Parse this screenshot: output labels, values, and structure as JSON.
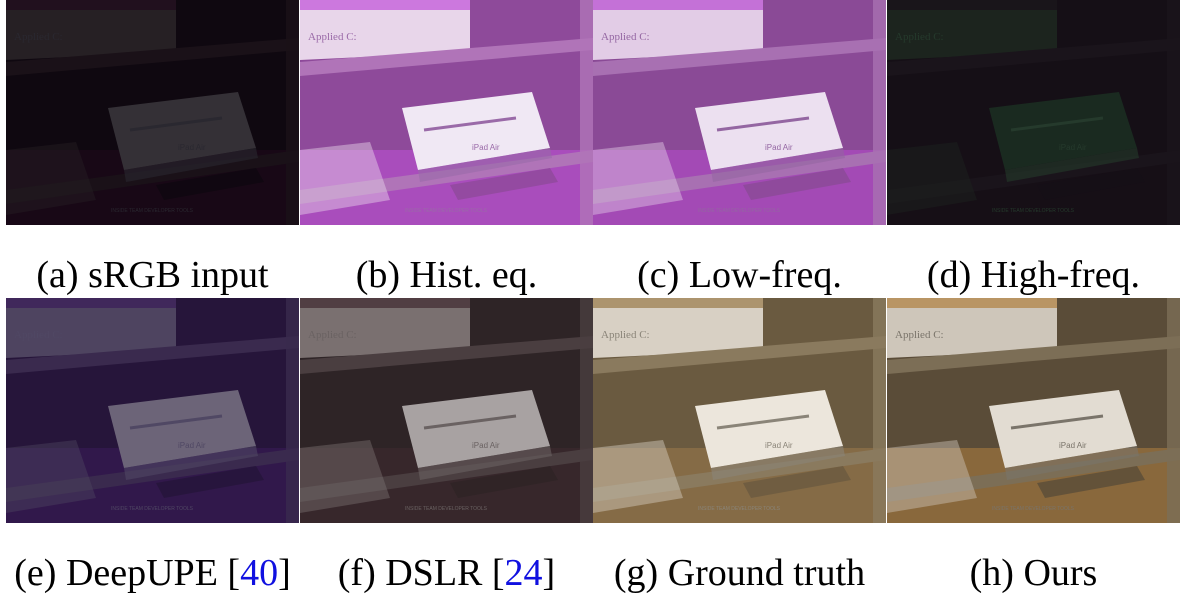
{
  "panels": [
    {
      "caption": "(a) sRGB input",
      "theme": {
        "bg": "#0f0810",
        "shelf": "#1a1118",
        "book": "#262024",
        "box": "#343036",
        "boxText": "#2a2830",
        "tint": "#200a1c"
      }
    },
    {
      "caption": "(b) Hist. eq.",
      "theme": {
        "bg": "#8e4a9a",
        "shelf": "#b074b8",
        "book": "#e8d6ea",
        "box": "#f0e8f4",
        "boxText": "#9a6aa8",
        "tint": "#c050d8"
      }
    },
    {
      "caption": "(c) Low-freq.",
      "theme": {
        "bg": "#8a4a96",
        "shelf": "#a870b2",
        "book": "#e2cce6",
        "box": "#ece0f0",
        "boxText": "#9466a2",
        "tint": "#b84ad0"
      }
    },
    {
      "caption": "(d) High-freq.",
      "theme": {
        "bg": "#150f16",
        "shelf": "#1a141b",
        "book": "#1c241e",
        "box": "#1a2a20",
        "boxText": "#253a2c",
        "tint": "#181018"
      }
    },
    {
      "caption_main": "(e) DeepUPE [",
      "ref": "40",
      "caption_end": "]",
      "theme": {
        "bg": "#26153a",
        "shelf": "#3a2a4e",
        "book": "#4e4460",
        "box": "#6c6478",
        "boxText": "#504864",
        "tint": "#3a1c5a"
      }
    },
    {
      "caption_main": "(f) DSLR [",
      "ref": "24",
      "caption_end": "]",
      "theme": {
        "bg": "#2e2426",
        "shelf": "#4a3e40",
        "book": "#7a7070",
        "box": "#a8a2a2",
        "boxText": "#6a6262",
        "tint": "#402a30"
      }
    },
    {
      "caption": "(g) Ground truth",
      "theme": {
        "bg": "#6a5a40",
        "shelf": "#8a7a5e",
        "book": "#d8d0c4",
        "box": "#ece6dc",
        "boxText": "#8a8478",
        "tint": "#9a7a4a"
      }
    },
    {
      "caption": "(h) Ours",
      "theme": {
        "bg": "#5a4c38",
        "shelf": "#7c6e56",
        "book": "#cec6ba",
        "box": "#e2dcd2",
        "boxText": "#7a746a",
        "tint": "#b08040"
      }
    }
  ],
  "scene_text": {
    "book_title": "Applied C: An Introduction and More",
    "box_label": "iPad Air",
    "shelf_label": "INSIDE TEAM DEVELOPER TOOLS"
  }
}
